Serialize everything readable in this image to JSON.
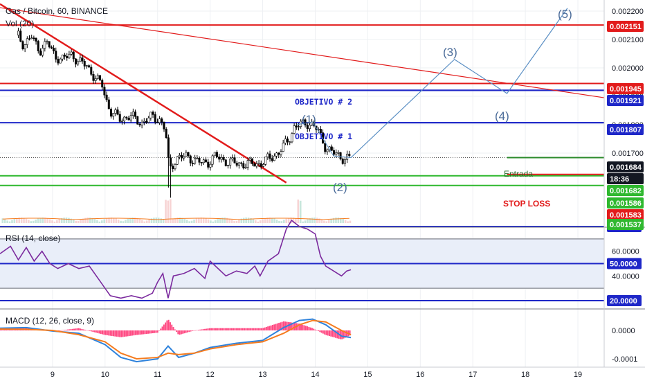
{
  "chart_data": [
    {
      "type": "candlestick",
      "title": "Gas / Bitcoin, 60, BINANCE",
      "indicator_label": "Vol (20)",
      "x_ticks": [
        "9",
        "10",
        "11",
        "12",
        "13",
        "14",
        "15",
        "16",
        "17",
        "18",
        "19"
      ],
      "y_ticks": [
        "0.002200",
        "0.002100",
        "0.002000",
        "0.001900",
        "0.001800",
        "0.001700"
      ],
      "ylim": [
        0.00159,
        0.00224
      ],
      "price_path": [
        [
          8.35,
          0.002115
        ],
        [
          8.45,
          0.00208
        ],
        [
          8.6,
          0.00211
        ],
        [
          8.75,
          0.00206
        ],
        [
          8.9,
          0.00209
        ],
        [
          9.05,
          0.00204
        ],
        [
          9.2,
          0.00203
        ],
        [
          9.35,
          0.00205
        ],
        [
          9.5,
          0.00202
        ],
        [
          9.65,
          0.00201
        ],
        [
          9.8,
          0.001965
        ],
        [
          9.95,
          0.00194
        ],
        [
          10.0,
          0.0019
        ],
        [
          10.1,
          0.001845
        ],
        [
          10.3,
          0.00182
        ],
        [
          10.5,
          0.00183
        ],
        [
          10.7,
          0.001805
        ],
        [
          10.9,
          0.00183
        ],
        [
          11.05,
          0.001815
        ],
        [
          11.15,
          0.00178
        ],
        [
          11.22,
          0.00164
        ],
        [
          11.35,
          0.00168
        ],
        [
          11.55,
          0.00169
        ],
        [
          11.75,
          0.00167
        ],
        [
          11.95,
          0.001665
        ],
        [
          12.1,
          0.00169
        ],
        [
          12.3,
          0.00167
        ],
        [
          12.5,
          0.001665
        ],
        [
          12.65,
          0.00166
        ],
        [
          12.85,
          0.001665
        ],
        [
          12.95,
          0.00166
        ],
        [
          13.1,
          0.00168
        ],
        [
          13.3,
          0.0017
        ],
        [
          13.5,
          0.00175
        ],
        [
          13.6,
          0.00179
        ],
        [
          13.7,
          0.0018
        ],
        [
          13.85,
          0.001805
        ],
        [
          13.95,
          0.0018
        ],
        [
          14.05,
          0.00178
        ],
        [
          14.2,
          0.00172
        ],
        [
          14.35,
          0.0017
        ],
        [
          14.45,
          0.00169
        ],
        [
          14.55,
          0.00168
        ],
        [
          14.68,
          0.001685
        ]
      ],
      "price_tags": [
        {
          "value": "0.002151",
          "color": "#e21b1b"
        },
        {
          "value": "0.001945",
          "color": "#e21b1b"
        },
        {
          "value": "0.001921",
          "color": "#1e27c8"
        },
        {
          "value": "0.001807",
          "color": "#1e27c8"
        },
        {
          "value": "0.001684",
          "color": "#131722"
        },
        {
          "value": "18:36",
          "color": "#131722"
        },
        {
          "value": "0.001682",
          "color": "#2fb82f"
        },
        {
          "value": "0.001586",
          "color": "#2fb82f"
        },
        {
          "value": "0.001583",
          "color": "#e21b1b"
        },
        {
          "value": "0.001537",
          "color": "#2fb82f"
        }
      ],
      "horizontal_levels": [
        {
          "value": 0.002151,
          "color": "#e21b1b"
        },
        {
          "value": 0.001945,
          "color": "#e21b1b"
        },
        {
          "value": 0.001921,
          "color": "#1e27c8"
        },
        {
          "value": 0.001807,
          "color": "#1e27c8"
        },
        {
          "value": 0.00162,
          "color": "#2fb82f"
        },
        {
          "value": 0.001586,
          "color": "#2fb82f"
        }
      ],
      "annotations": {
        "objetivo_2": "OBJETIVO # 2",
        "objetivo_1": "OBJETIVO # 1",
        "entrada": "Entrada",
        "stop_loss": "STOP LOSS",
        "waves": [
          "(1)",
          "(2)",
          "(3)",
          "(4)",
          "(5)"
        ]
      },
      "wave_projection": [
        [
          14.68,
          0.001684
        ],
        [
          16.65,
          0.00203
        ],
        [
          17.65,
          0.00191
        ],
        [
          18.8,
          0.00221
        ]
      ],
      "trendlines": [
        {
          "from": [
            8.0,
            0.002225
          ],
          "to": [
            13.45,
            0.001596
          ],
          "color": "#e21b1b"
        },
        {
          "from": [
            8.0,
            0.002212
          ],
          "to": [
            19.5,
            0.001895
          ],
          "color": "#e21b1b"
        }
      ]
    },
    {
      "type": "line",
      "title": "RSI (14, close)",
      "y_ticks": [
        "60.0000",
        "40.0000"
      ],
      "levels": [
        {
          "value": "80.0000",
          "color": "#1e27c8"
        },
        {
          "value": "50.0000",
          "color": "#1e27c8"
        },
        {
          "value": "20.0000",
          "color": "#1e27c8"
        }
      ],
      "band": [
        30,
        70
      ],
      "ylim": [
        15,
        90
      ],
      "color": "#7b2a9e",
      "series": [
        [
          8.0,
          58
        ],
        [
          8.2,
          64
        ],
        [
          8.35,
          53
        ],
        [
          8.5,
          63
        ],
        [
          8.65,
          52
        ],
        [
          8.8,
          60
        ],
        [
          8.95,
          50
        ],
        [
          9.1,
          46
        ],
        [
          9.3,
          50
        ],
        [
          9.5,
          46
        ],
        [
          9.7,
          48
        ],
        [
          9.9,
          36
        ],
        [
          10.0,
          30
        ],
        [
          10.1,
          24
        ],
        [
          10.3,
          22
        ],
        [
          10.5,
          24
        ],
        [
          10.7,
          22
        ],
        [
          10.9,
          26
        ],
        [
          11.0,
          35
        ],
        [
          11.1,
          42
        ],
        [
          11.2,
          22
        ],
        [
          11.3,
          40
        ],
        [
          11.5,
          42
        ],
        [
          11.7,
          46
        ],
        [
          11.9,
          38
        ],
        [
          12.0,
          52
        ],
        [
          12.15,
          46
        ],
        [
          12.3,
          40
        ],
        [
          12.5,
          44
        ],
        [
          12.7,
          42
        ],
        [
          12.85,
          48
        ],
        [
          12.95,
          40
        ],
        [
          13.1,
          52
        ],
        [
          13.3,
          58
        ],
        [
          13.45,
          78
        ],
        [
          13.55,
          85
        ],
        [
          13.7,
          80
        ],
        [
          13.85,
          78
        ],
        [
          14.0,
          74
        ],
        [
          14.1,
          56
        ],
        [
          14.2,
          48
        ],
        [
          14.35,
          44
        ],
        [
          14.5,
          40
        ],
        [
          14.6,
          44
        ],
        [
          14.68,
          45
        ]
      ]
    },
    {
      "type": "line",
      "title": "MACD (12, 26, close, 9)",
      "y_ticks": [
        "0.0000",
        "-0.0001"
      ],
      "ylim": [
        -0.00012,
        6e-05
      ],
      "series": [
        {
          "color": "#2f83dc",
          "values": [
            [
              8.0,
              8e-06
            ],
            [
              8.5,
              1e-05
            ],
            [
              9.0,
              -2e-06
            ],
            [
              9.5,
              -1e-05
            ],
            [
              10.0,
              -5e-05
            ],
            [
              10.3,
              -9.5e-05
            ],
            [
              10.6,
              -0.00011
            ],
            [
              11.0,
              -0.0001
            ],
            [
              11.2,
              -5.5e-05
            ],
            [
              11.4,
              -9.5e-05
            ],
            [
              11.7,
              -8e-05
            ],
            [
              12.0,
              -6e-05
            ],
            [
              12.5,
              -4.5e-05
            ],
            [
              13.0,
              -3.5e-05
            ],
            [
              13.4,
              1e-05
            ],
            [
              13.7,
              3.5e-05
            ],
            [
              13.95,
              4e-05
            ],
            [
              14.2,
              2e-05
            ],
            [
              14.5,
              -2e-05
            ],
            [
              14.68,
              -2.5e-05
            ]
          ]
        },
        {
          "color": "#f57c1f",
          "values": [
            [
              8.0,
              5e-06
            ],
            [
              8.5,
              4e-06
            ],
            [
              9.0,
              0.0
            ],
            [
              9.5,
              -1.5e-05
            ],
            [
              10.0,
              -4e-05
            ],
            [
              10.3,
              -8e-05
            ],
            [
              10.6,
              -0.0001
            ],
            [
              11.0,
              -9.5e-05
            ],
            [
              11.2,
              -8e-05
            ],
            [
              11.4,
              -8.5e-05
            ],
            [
              11.7,
              -8e-05
            ],
            [
              12.0,
              -6.5e-05
            ],
            [
              12.5,
              -5e-05
            ],
            [
              13.0,
              -4e-05
            ],
            [
              13.4,
              -1e-05
            ],
            [
              13.7,
              2e-05
            ],
            [
              13.95,
              3.5e-05
            ],
            [
              14.2,
              3e-05
            ],
            [
              14.5,
              0.0
            ],
            [
              14.68,
              -1.5e-05
            ]
          ]
        }
      ],
      "histogram_color": "#ff2a6d"
    }
  ]
}
